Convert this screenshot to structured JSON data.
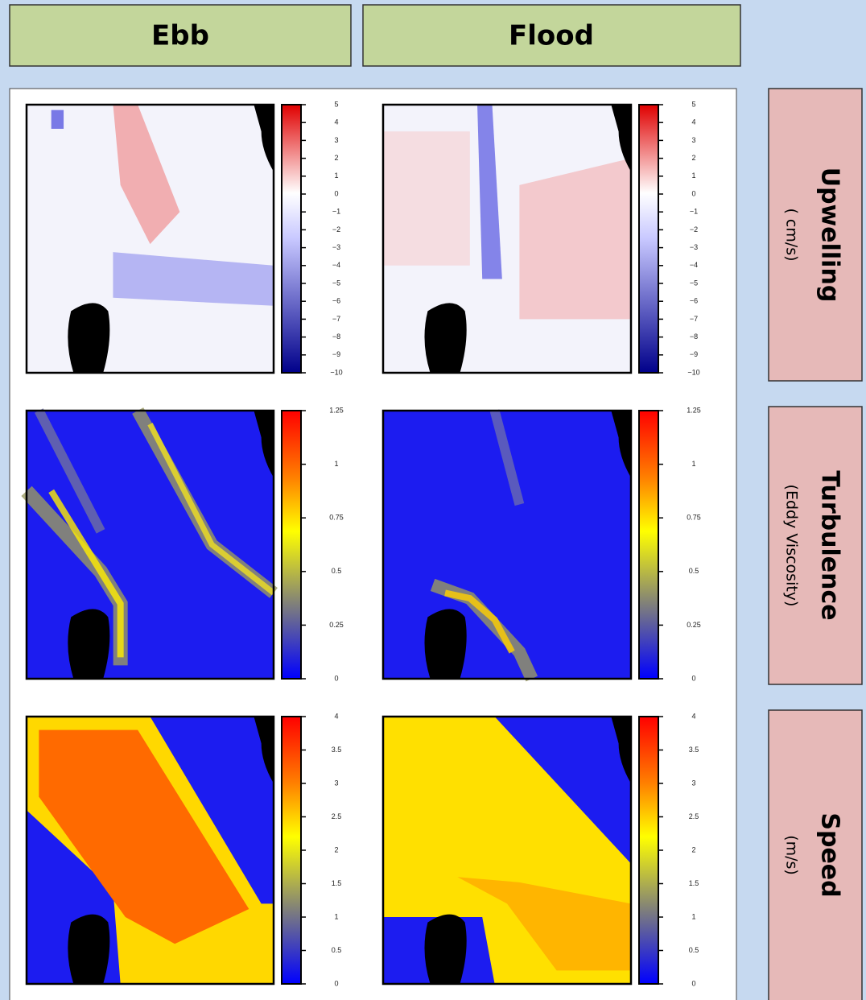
{
  "columns": [
    "Ebb",
    "Flood"
  ],
  "rows": [
    {
      "title": "Upwelling",
      "unit": "( cm/s)",
      "ticks": [
        "5",
        "4",
        "3",
        "2",
        "1",
        "0",
        "−1",
        "−2",
        "−3",
        "−4",
        "−5",
        "−6",
        "−7",
        "−8",
        "−9",
        "−10"
      ]
    },
    {
      "title": "Turbulence",
      "unit": "(Eddy Viscosity)",
      "ticks": [
        "1.25",
        "1",
        "0.75",
        "0.5",
        "0.25",
        "0"
      ]
    },
    {
      "title": "Speed",
      "unit": "(m/s)",
      "ticks": [
        "4",
        "3.5",
        "3",
        "2.5",
        "2",
        "1.5",
        "1",
        "0.5",
        "0"
      ]
    }
  ]
}
